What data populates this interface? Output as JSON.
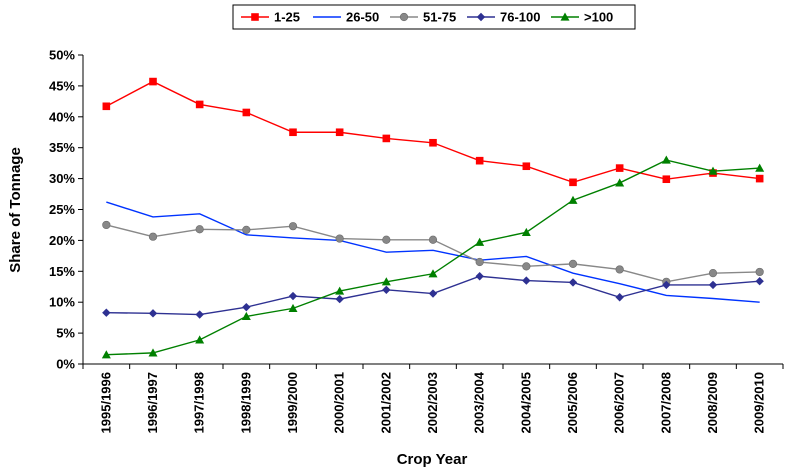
{
  "chart_data": {
    "type": "line",
    "xlabel": "Crop Year",
    "ylabel": "Share of Tonnage",
    "ylim": [
      0,
      50
    ],
    "y_tick_step": 5,
    "y_tick_format": "percent",
    "grid": false,
    "legend_position": "top",
    "categories": [
      "1995/1996",
      "1996/1997",
      "1997/1998",
      "1998/1999",
      "1999/2000",
      "2000/2001",
      "2001/2002",
      "2002/2003",
      "2003/2004",
      "2004/2005",
      "2005/2006",
      "2006/2007",
      "2007/2008",
      "2008/2009",
      "2009/2010"
    ],
    "series": [
      {
        "name": "1-25",
        "color": "#ff0000",
        "marker": "square",
        "values": [
          41.7,
          45.7,
          42.0,
          40.7,
          37.5,
          37.5,
          36.5,
          35.8,
          32.9,
          32.0,
          29.4,
          31.7,
          29.9,
          30.9,
          30.0
        ]
      },
      {
        "name": "26-50",
        "color": "#0033ff",
        "marker": "none",
        "values": [
          26.2,
          23.8,
          24.3,
          20.9,
          20.4,
          20.0,
          18.1,
          18.4,
          16.8,
          17.4,
          14.7,
          13.0,
          11.1,
          10.6,
          10.0
        ]
      },
      {
        "name": "51-75",
        "color": "#888888",
        "marker": "circle",
        "values": [
          22.5,
          20.6,
          21.8,
          21.7,
          22.3,
          20.3,
          20.1,
          20.1,
          16.5,
          15.8,
          16.2,
          15.3,
          13.3,
          14.7,
          14.9
        ]
      },
      {
        "name": "76-100",
        "color": "#2e3192",
        "marker": "diamond",
        "values": [
          8.3,
          8.2,
          8.0,
          9.2,
          11.0,
          10.5,
          12.0,
          11.4,
          14.2,
          13.5,
          13.2,
          10.8,
          12.8,
          12.8,
          13.4
        ]
      },
      {
        "name": ">100",
        "color": "#008000",
        "marker": "triangle",
        "values": [
          1.5,
          1.8,
          3.9,
          7.7,
          9.0,
          11.8,
          13.3,
          14.6,
          19.7,
          21.3,
          26.5,
          29.3,
          33.0,
          31.2,
          31.7
        ]
      }
    ]
  }
}
